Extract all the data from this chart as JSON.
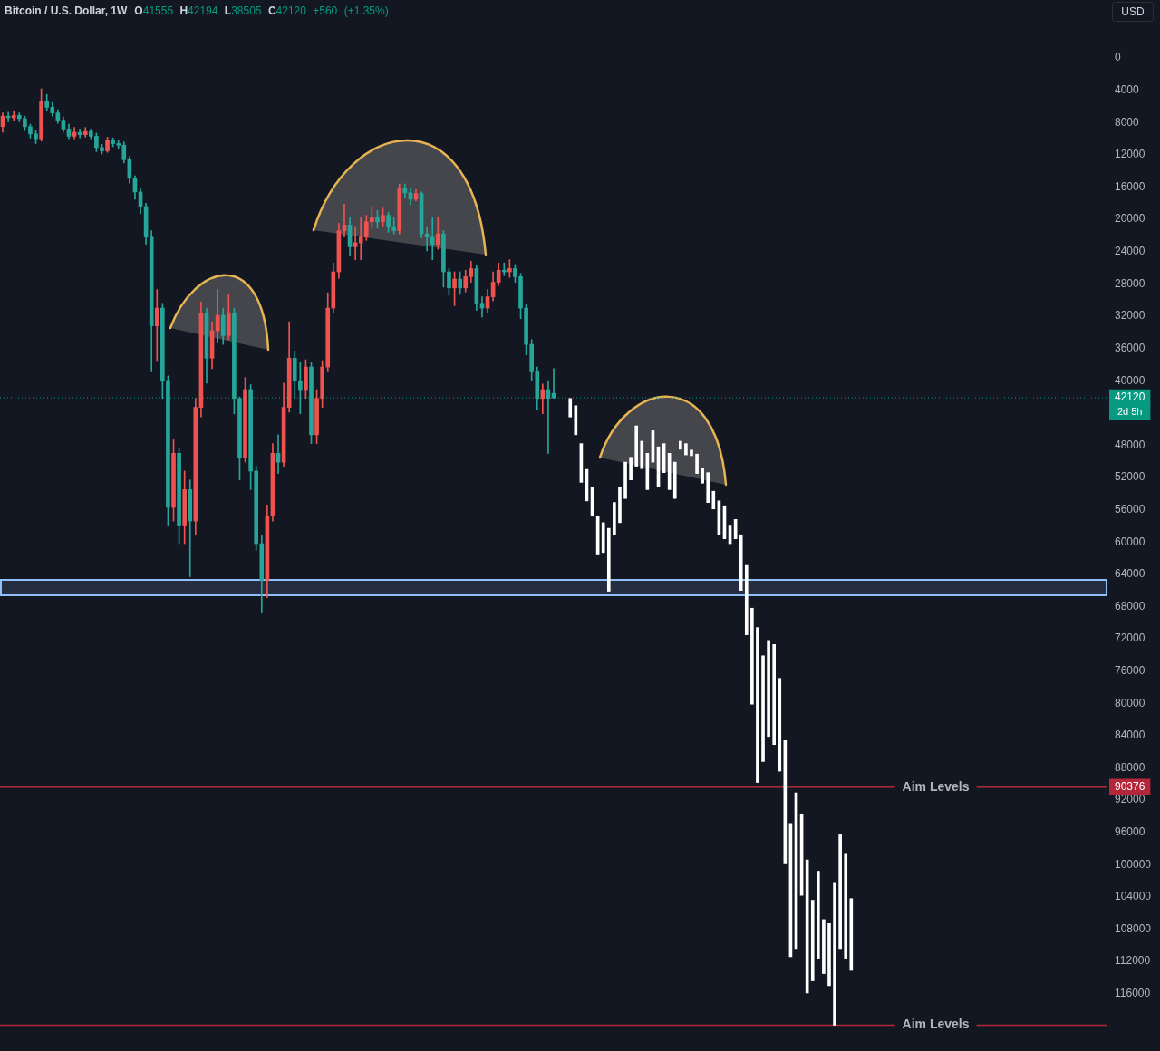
{
  "chart_data": {
    "type": "candlestick",
    "title": "Bitcoin / U.S. Dollar, 1W",
    "subtitle": "O41555 H42194 L38505 C42120 +560 (+1.35%)",
    "ylabel": "USD",
    "categories": [
      null,
      null,
      null,
      null,
      null,
      null,
      null,
      null,
      null,
      null,
      null,
      null,
      null,
      null,
      null,
      null,
      null,
      null,
      null,
      null,
      null,
      null,
      null,
      null,
      null,
      null,
      null,
      null,
      null,
      null,
      null,
      null,
      null,
      null,
      null,
      null,
      null,
      null,
      null,
      null,
      null,
      null,
      null,
      null,
      null,
      null,
      null,
      null,
      null,
      null,
      null,
      null,
      null,
      null,
      null,
      null,
      null,
      null,
      null,
      null,
      null,
      null,
      null,
      null,
      null,
      null,
      null,
      null,
      null,
      null,
      null,
      null,
      null,
      null,
      null,
      null,
      null,
      null,
      null,
      null,
      null,
      null,
      null,
      null,
      null,
      null,
      null,
      null,
      null,
      null,
      null,
      null,
      null,
      null,
      null,
      null,
      null,
      null,
      null,
      null,
      null,
      null,
      null,
      null,
      null,
      null,
      null,
      null,
      null,
      null,
      null,
      null,
      null,
      null,
      null,
      null,
      null,
      null,
      null,
      null,
      null,
      null,
      null,
      null,
      null,
      null,
      null,
      null,
      null,
      null,
      null,
      null,
      null,
      null,
      null,
      null,
      null,
      null,
      null,
      null,
      null,
      null,
      null,
      null,
      null,
      null,
      null,
      null,
      null,
      null,
      null,
      null,
      null,
      null,
      null,
      null,
      null,
      null,
      null,
      null,
      null,
      null,
      null,
      null,
      null,
      null,
      null,
      null,
      null,
      null,
      null,
      null,
      null,
      null,
      null,
      null,
      null,
      null,
      null,
      null,
      null,
      null,
      null,
      null,
      null,
      null,
      null,
      null,
      null,
      null,
      null,
      null,
      null,
      null,
      null,
      null,
      null,
      null,
      null,
      null,
      null
    ],
    "series": [
      {
        "ohlc": [
          [
            8500,
            9200,
            6800,
            7200
          ],
          [
            7200,
            7900,
            6700,
            7400
          ],
          [
            7400,
            7700,
            6600,
            7100
          ],
          [
            7100,
            7900,
            6800,
            7500
          ],
          [
            7500,
            9000,
            7200,
            8500
          ],
          [
            8500,
            9900,
            8200,
            9400
          ],
          [
            9400,
            10600,
            9000,
            10000
          ],
          [
            10000,
            10300,
            3800,
            5400
          ],
          [
            5400,
            6500,
            4500,
            6100
          ],
          [
            6100,
            7200,
            5500,
            6800
          ],
          [
            6800,
            8100,
            6400,
            7700
          ],
          [
            7700,
            9200,
            7300,
            8800
          ],
          [
            8800,
            10000,
            8200,
            9700
          ],
          [
            9700,
            10000,
            8600,
            9200
          ],
          [
            9200,
            9900,
            8800,
            9500
          ],
          [
            9500,
            9800,
            8600,
            9100
          ],
          [
            9100,
            10000,
            8800,
            9700
          ],
          [
            9700,
            11600,
            9300,
            11100
          ],
          [
            11100,
            11900,
            10700,
            11500
          ],
          [
            11500,
            11700,
            9800,
            10200
          ],
          [
            10200,
            11000,
            9900,
            10600
          ],
          [
            10600,
            11200,
            10200,
            10800
          ],
          [
            10800,
            13000,
            10400,
            12600
          ],
          [
            12600,
            15500,
            12200,
            14900
          ],
          [
            14900,
            17500,
            14600,
            16600
          ],
          [
            16600,
            19300,
            16200,
            18400
          ],
          [
            18400,
            23100,
            18000,
            22200
          ],
          [
            22200,
            38900,
            21400,
            33200
          ],
          [
            33200,
            37500,
            28700,
            31000
          ],
          [
            31000,
            42200,
            30400,
            40000
          ],
          [
            40000,
            57900,
            39400,
            55700
          ],
          [
            55700,
            57400,
            47300,
            49000
          ],
          [
            49000,
            60200,
            48400,
            57900
          ],
          [
            57900,
            60200,
            51200,
            53500
          ],
          [
            53500,
            64300,
            52300,
            57400
          ],
          [
            57400,
            59100,
            42200,
            43300
          ],
          [
            43300,
            44500,
            30200,
            31600
          ],
          [
            31600,
            40300,
            31000,
            37200
          ],
          [
            37200,
            38500,
            32700,
            33800
          ],
          [
            33800,
            35300,
            28700,
            31900
          ],
          [
            31900,
            35500,
            31000,
            34400
          ],
          [
            34400,
            34900,
            29300,
            31600
          ],
          [
            31600,
            44100,
            31000,
            42200
          ],
          [
            42200,
            52300,
            42000,
            49500
          ],
          [
            49500,
            50100,
            39600,
            41100
          ],
          [
            41100,
            53500,
            40500,
            51200
          ],
          [
            51200,
            61000,
            50600,
            60200
          ],
          [
            60200,
            68800,
            59100,
            64700
          ],
          [
            64700,
            66900,
            55400,
            56800
          ],
          [
            56800,
            57400,
            47800,
            49000
          ],
          [
            49000,
            51500,
            46700,
            50100
          ],
          [
            50100,
            50600,
            40300,
            43300
          ],
          [
            43300,
            43900,
            32700,
            37200
          ],
          [
            37200,
            42200,
            36300,
            40000
          ],
          [
            40000,
            44100,
            37700,
            41100
          ],
          [
            41100,
            42200,
            37400,
            38300
          ],
          [
            38300,
            47800,
            37700,
            46700
          ],
          [
            46700,
            47800,
            41100,
            42200
          ],
          [
            42200,
            43300,
            37500,
            38300
          ],
          [
            38300,
            38900,
            29100,
            31000
          ],
          [
            31000,
            31600,
            25400,
            26500
          ],
          [
            26500,
            27300,
            20500,
            21400
          ],
          [
            21400,
            22200,
            18100,
            20700
          ],
          [
            20700,
            24500,
            19800,
            23400
          ],
          [
            23400,
            25000,
            20900,
            22900
          ],
          [
            22900,
            25000,
            19800,
            22200
          ],
          [
            22200,
            22600,
            19500,
            20300
          ],
          [
            20300,
            21100,
            18400,
            19800
          ],
          [
            19800,
            21100,
            18900,
            20300
          ],
          [
            20300,
            20900,
            18600,
            19500
          ],
          [
            19500,
            21600,
            19100,
            20900
          ],
          [
            20900,
            21800,
            19800,
            21400
          ],
          [
            21400,
            21800,
            15600,
            16100
          ],
          [
            16100,
            17300,
            15600,
            16700
          ],
          [
            16700,
            18200,
            16200,
            17500
          ],
          [
            17500,
            17700,
            16300,
            16800
          ],
          [
            16800,
            22300,
            16600,
            21800
          ],
          [
            21800,
            23900,
            20900,
            22200
          ],
          [
            22200,
            25000,
            19800,
            23100
          ],
          [
            23100,
            23700,
            19800,
            21800
          ],
          [
            21800,
            28400,
            21400,
            26500
          ],
          [
            26500,
            29400,
            26100,
            28500
          ],
          [
            28500,
            30700,
            26500,
            27400
          ],
          [
            27400,
            29300,
            26500,
            28500
          ],
          [
            28500,
            29000,
            26300,
            27100
          ],
          [
            27100,
            27800,
            25200,
            26100
          ],
          [
            26100,
            31300,
            25700,
            30400
          ],
          [
            30400,
            32100,
            29600,
            31000
          ],
          [
            31000,
            31600,
            28700,
            29600
          ],
          [
            29600,
            30100,
            26500,
            27800
          ],
          [
            27800,
            28200,
            25400,
            26300
          ],
          [
            26300,
            27000,
            25400,
            26500
          ],
          [
            26500,
            27200,
            25000,
            26100
          ],
          [
            26100,
            27800,
            25600,
            27100
          ],
          [
            27100,
            32300,
            26700,
            31000
          ],
          [
            31000,
            36800,
            30500,
            35500
          ],
          [
            35500,
            40000,
            34900,
            38900
          ],
          [
            38900,
            43600,
            38300,
            42200
          ],
          [
            42200,
            44100,
            40400,
            41100
          ],
          [
            41100,
            49000,
            40000,
            42200
          ],
          [
            41555,
            42194,
            38505,
            42120
          ],
          null,
          null,
          null,
          null,
          null,
          null,
          null,
          null,
          null,
          null,
          null,
          null,
          null,
          null,
          null,
          null,
          null,
          null,
          null,
          null,
          null,
          null,
          null,
          null,
          null,
          null,
          null,
          null,
          null,
          null,
          null,
          null,
          null,
          null,
          null,
          null,
          null,
          null,
          null,
          null,
          null,
          null,
          null,
          null,
          null,
          null,
          null,
          null,
          null,
          null,
          null,
          null,
          null,
          null,
          null,
          null,
          null,
          null,
          null,
          null,
          null,
          null,
          null,
          null,
          null,
          null,
          null,
          null,
          null,
          null,
          null,
          null,
          null,
          null,
          null,
          null,
          null,
          null,
          null,
          null,
          null,
          null,
          null,
          null,
          null,
          null,
          null,
          null,
          null,
          null,
          null,
          null,
          null,
          null,
          null,
          null,
          null,
          null,
          null,
          null
        ],
        "colors": [
          "#ef5350",
          "#26a69a",
          "#ef5350",
          "#26a69a",
          "#26a69a",
          "#26a69a",
          "#26a69a",
          "#ef5350",
          "#26a69a",
          "#26a69a",
          "#26a69a",
          "#26a69a",
          "#26a69a",
          "#ef5350",
          "#26a69a",
          "#ef5350",
          "#26a69a",
          "#26a69a",
          "#26a69a",
          "#ef5350",
          "#26a69a",
          "#26a69a",
          "#26a69a",
          "#26a69a",
          "#26a69a",
          "#26a69a",
          "#26a69a",
          "#26a69a",
          "#ef5350",
          "#26a69a",
          "#26a69a",
          "#ef5350",
          "#26a69a",
          "#ef5350",
          "#26a69a",
          "#ef5350",
          "#ef5350",
          "#26a69a",
          "#ef5350",
          "#ef5350",
          "#26a69a",
          "#ef5350",
          "#26a69a",
          "#26a69a",
          "#ef5350",
          "#26a69a",
          "#26a69a",
          "#26a69a",
          "#ef5350",
          "#ef5350",
          "#26a69a",
          "#ef5350",
          "#ef5350",
          "#26a69a",
          "#26a69a",
          "#ef5350",
          "#26a69a",
          "#ef5350",
          "#ef5350",
          "#ef5350",
          "#ef5350",
          "#ef5350",
          "#ef5350",
          "#26a69a",
          "#ef5350",
          "#ef5350",
          "#ef5350",
          "#ef5350",
          "#26a69a",
          "#ef5350",
          "#26a69a",
          "#26a69a",
          "#ef5350",
          "#26a69a",
          "#26a69a",
          "#ef5350",
          "#26a69a",
          "#26a69a",
          "#26a69a",
          "#ef5350",
          "#26a69a",
          "#26a69a",
          "#ef5350",
          "#26a69a",
          "#ef5350",
          "#ef5350",
          "#26a69a",
          "#26a69a",
          "#ef5350",
          "#ef5350",
          "#ef5350",
          "#26a69a",
          "#ef5350",
          "#26a69a",
          "#26a69a",
          "#26a69a",
          "#26a69a",
          "#26a69a",
          "#ef5350",
          "#26a69a",
          "#26a69a",
          null,
          null,
          null,
          null,
          null,
          null,
          null,
          null,
          null,
          null,
          null,
          null,
          null,
          null,
          null,
          null,
          null,
          null,
          null,
          null,
          null,
          null,
          null,
          null,
          null,
          null,
          null,
          null,
          null,
          null,
          null,
          null,
          null,
          null,
          null,
          null,
          null,
          null,
          null,
          null,
          null,
          null,
          null,
          null,
          null,
          null,
          null,
          null,
          null,
          null,
          null,
          null,
          null,
          null,
          null,
          null,
          null,
          null,
          null,
          null,
          null,
          null,
          null,
          null,
          null,
          null,
          null,
          null,
          null,
          null,
          null,
          null,
          null,
          null,
          null,
          null,
          null,
          null,
          null,
          null,
          null,
          null,
          null,
          null,
          null,
          null,
          null,
          null,
          null,
          null,
          null,
          null,
          null,
          null,
          null,
          null,
          null,
          null,
          null,
          null
        ]
      },
      {
        "type": "bar",
        "color": "#ffffff",
        "base": [
          null,
          null,
          null,
          null,
          null,
          null,
          null,
          null,
          null,
          null,
          null,
          null,
          null,
          null,
          null,
          null,
          null,
          null,
          null,
          null,
          null,
          null,
          null,
          null,
          null,
          null,
          null,
          null,
          null,
          null,
          null,
          null,
          null,
          null,
          null,
          null,
          null,
          null,
          null,
          null,
          null,
          null,
          null,
          null,
          null,
          null,
          null,
          null,
          null,
          null,
          null,
          null,
          null,
          null,
          null,
          null,
          null,
          null,
          null,
          null,
          null,
          null,
          null,
          null,
          null,
          null,
          null,
          null,
          null,
          null,
          null,
          null,
          null,
          null,
          null,
          null,
          null,
          null,
          null,
          null,
          null,
          null,
          null,
          null,
          null,
          null,
          null,
          null,
          null,
          null,
          null,
          null,
          null,
          null,
          null,
          null,
          null,
          null,
          null,
          null,
          null,
          null,
          null,
          42200,
          43100,
          47800,
          51000,
          53200,
          56800,
          57600,
          58300,
          55100,
          53200,
          50100,
          49500,
          45600,
          47500,
          49000,
          46200,
          48200,
          47800,
          49000,
          50100,
          47500,
          47800,
          48600,
          49100,
          50900,
          51400,
          53700,
          54900,
          55500,
          57900,
          57200,
          59100,
          62900,
          68200,
          70600,
          74100,
          72200,
          72700,
          76900,
          84600,
          94900,
          91100,
          93700,
          99400,
          104400,
          100800,
          106800,
          107300,
          102300,
          96300,
          98700,
          104200,
          null,
          null,
          null,
          null,
          null,
          null,
          null,
          null,
          null,
          null,
          null,
          null,
          null,
          null,
          null,
          null,
          null,
          null,
          null,
          null,
          null,
          null,
          null,
          null,
          null,
          null,
          null,
          null,
          null,
          null,
          null,
          null,
          null,
          null,
          null,
          null,
          null,
          null,
          null,
          null,
          null,
          null,
          null,
          null,
          null,
          null
        ],
        "values": [
          null,
          null,
          null,
          null,
          null,
          null,
          null,
          null,
          null,
          null,
          null,
          null,
          null,
          null,
          null,
          null,
          null,
          null,
          null,
          null,
          null,
          null,
          null,
          null,
          null,
          null,
          null,
          null,
          null,
          null,
          null,
          null,
          null,
          null,
          null,
          null,
          null,
          null,
          null,
          null,
          null,
          null,
          null,
          null,
          null,
          null,
          null,
          null,
          null,
          null,
          null,
          null,
          null,
          null,
          null,
          null,
          null,
          null,
          null,
          null,
          null,
          null,
          null,
          null,
          null,
          null,
          null,
          null,
          null,
          null,
          null,
          null,
          null,
          null,
          null,
          null,
          null,
          null,
          null,
          null,
          null,
          null,
          null,
          null,
          null,
          null,
          null,
          null,
          null,
          null,
          null,
          null,
          null,
          null,
          null,
          null,
          null,
          null,
          null,
          null,
          null,
          null,
          null,
          2300,
          3600,
          4800,
          3900,
          3600,
          4800,
          3700,
          7800,
          4000,
          4400,
          4500,
          2800,
          5000,
          3400,
          4500,
          3900,
          4900,
          3600,
          4500,
          4500,
          1000,
          1400,
          700,
          2400,
          1800,
          3700,
          2200,
          4200,
          4100,
          2300,
          2400,
          6900,
          8600,
          11900,
          19200,
          13100,
          11900,
          12400,
          11500,
          15300,
          16500,
          19300,
          10100,
          16500,
          10000,
          10800,
          6700,
          7700,
          17600,
          14100,
          12900,
          8900,
          null,
          null,
          null,
          null,
          null,
          null,
          null,
          null,
          null,
          null,
          null,
          null,
          null,
          null,
          null,
          null,
          null,
          null,
          null,
          null,
          null,
          null,
          null,
          null,
          null,
          null,
          null,
          null,
          null,
          null,
          null,
          null,
          null,
          null,
          null,
          null,
          null,
          null,
          null,
          null,
          null,
          null,
          null,
          null,
          null,
          null
        ]
      }
    ],
    "ylim": [
      123100,
      -7200
    ],
    "yticks": [
      0,
      4000,
      8000,
      12000,
      16000,
      20000,
      24000,
      28000,
      32000,
      36000,
      40000,
      42120,
      48000,
      52000,
      56000,
      60000,
      64000,
      68000,
      72000,
      76000,
      80000,
      84000,
      88000,
      90376,
      92000,
      96000,
      100000,
      104000,
      108000,
      112000,
      116000
    ],
    "tick_labels": "y",
    "ref_lines": [
      {
        "axis": "y",
        "value": 42120,
        "color": "#089981",
        "line_style": "dotted"
      },
      {
        "axis": "y",
        "value": 90376,
        "label": "Aim Levels",
        "color": "#b2283a"
      },
      {
        "axis": "y",
        "value": 119900,
        "label": "Aim Levels",
        "color": "#b2283a"
      }
    ],
    "bands": [
      {
        "axis": "y",
        "from": 64700,
        "to": 66600,
        "color": "#90bff9"
      }
    ],
    "annotations": [
      "2d 5h"
    ]
  }
}
